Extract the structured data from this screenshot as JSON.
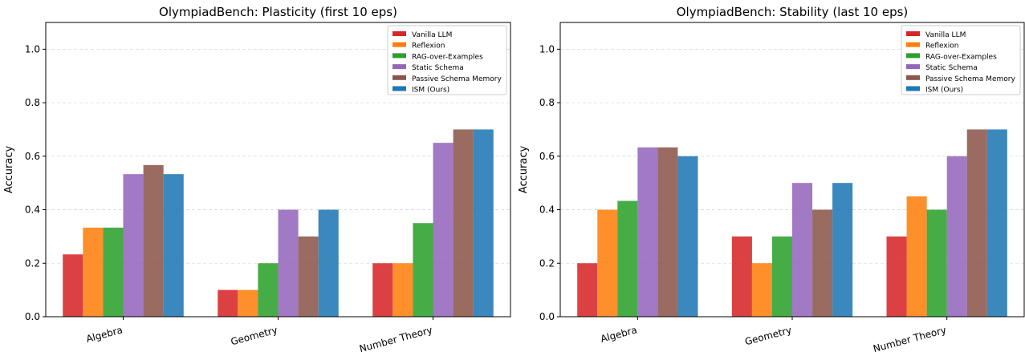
{
  "chart_data": [
    {
      "type": "bar",
      "title": "OlympiadBench: Plasticity (first 10 eps)",
      "xlabel": "",
      "ylabel": "Accuracy",
      "ylim": [
        0,
        1.1
      ],
      "yticks": [
        "0.0",
        "0.2",
        "0.4",
        "0.6",
        "0.8",
        "1.0"
      ],
      "grid": true,
      "legend": "top-right",
      "categories": [
        "Algebra",
        "Geometry",
        "Number Theory"
      ],
      "series": [
        {
          "name": "Vanilla LLM",
          "color": "#d62728",
          "values": [
            0.233,
            0.1,
            0.2
          ]
        },
        {
          "name": "Reflexion",
          "color": "#ff7f0e",
          "values": [
            0.333,
            0.1,
            0.2
          ]
        },
        {
          "name": "RAG-over-Examples",
          "color": "#2ca02c",
          "values": [
            0.333,
            0.2,
            0.35
          ]
        },
        {
          "name": "Static Schema",
          "color": "#9467bd",
          "values": [
            0.533,
            0.4,
            0.65
          ]
        },
        {
          "name": "Passive Schema Memory",
          "color": "#8c564b",
          "values": [
            0.567,
            0.3,
            0.7
          ]
        },
        {
          "name": "ISM (Ours)",
          "color": "#1f77b4",
          "values": [
            0.533,
            0.4,
            0.7
          ]
        }
      ]
    },
    {
      "type": "bar",
      "title": "OlympiadBench: Stability (last 10 eps)",
      "xlabel": "",
      "ylabel": "Accuracy",
      "ylim": [
        0,
        1.1
      ],
      "yticks": [
        "0.0",
        "0.2",
        "0.4",
        "0.6",
        "0.8",
        "1.0"
      ],
      "grid": true,
      "legend": "top-right",
      "categories": [
        "Algebra",
        "Geometry",
        "Number Theory"
      ],
      "series": [
        {
          "name": "Vanilla LLM",
          "color": "#d62728",
          "values": [
            0.2,
            0.3,
            0.3
          ]
        },
        {
          "name": "Reflexion",
          "color": "#ff7f0e",
          "values": [
            0.4,
            0.2,
            0.45
          ]
        },
        {
          "name": "RAG-over-Examples",
          "color": "#2ca02c",
          "values": [
            0.433,
            0.3,
            0.4
          ]
        },
        {
          "name": "Static Schema",
          "color": "#9467bd",
          "values": [
            0.633,
            0.5,
            0.6
          ]
        },
        {
          "name": "Passive Schema Memory",
          "color": "#8c564b",
          "values": [
            0.633,
            0.4,
            0.7
          ]
        },
        {
          "name": "ISM (Ours)",
          "color": "#1f77b4",
          "values": [
            0.6,
            0.5,
            0.7
          ]
        }
      ]
    }
  ]
}
